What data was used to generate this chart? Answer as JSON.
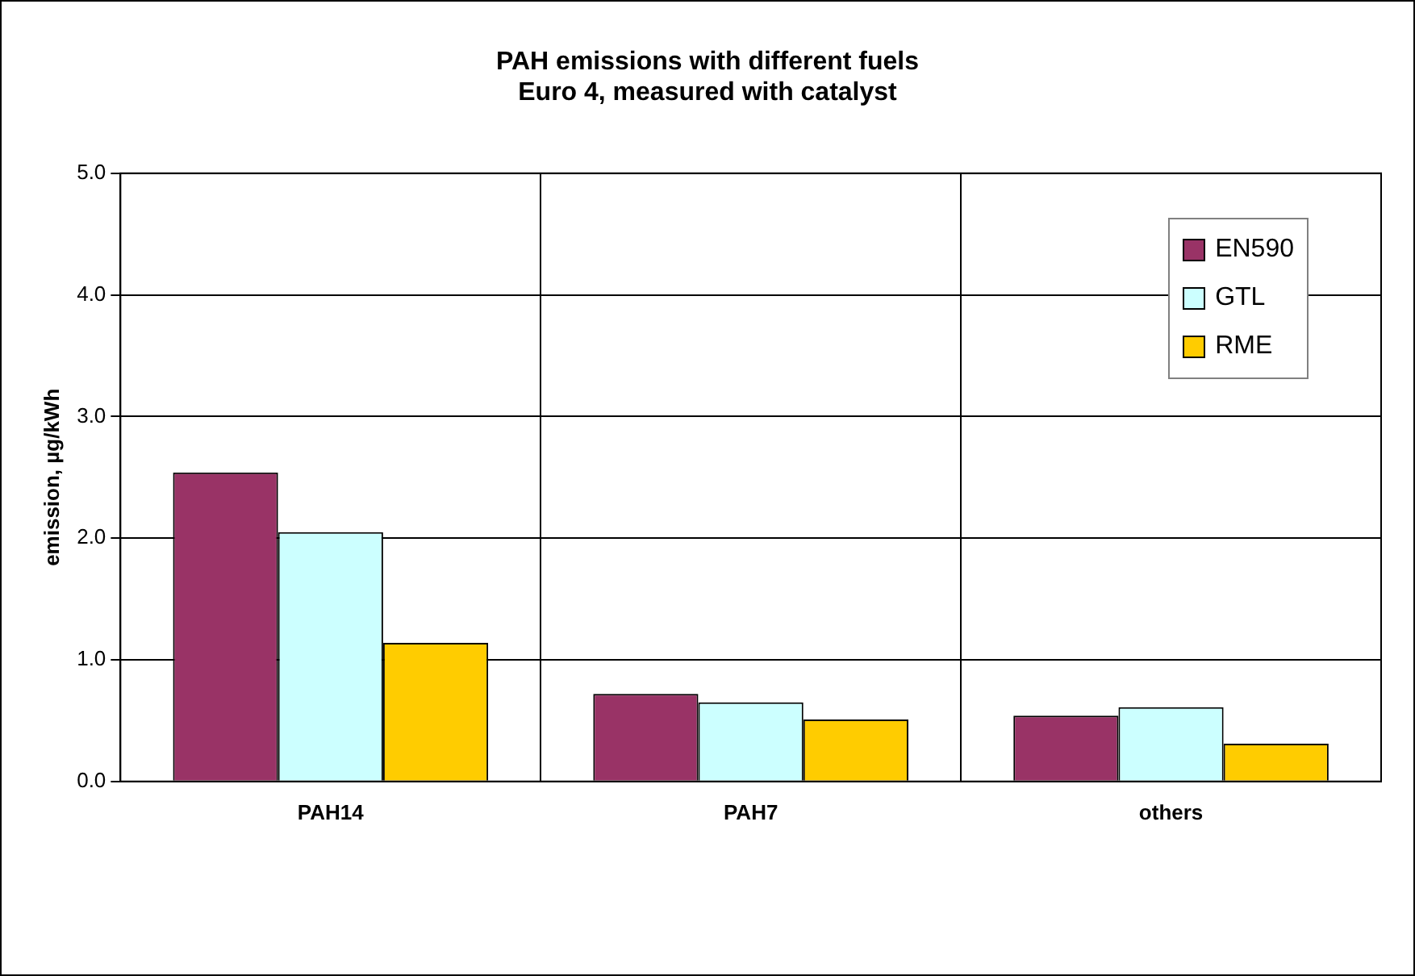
{
  "chart_data": {
    "type": "bar",
    "title": "PAH emissions with different fuels",
    "subtitle": "Euro 4, measured with catalyst",
    "ylabel": "emission, µg/kWh",
    "categories": [
      "PAH14",
      "PAH7",
      "others"
    ],
    "series": [
      {
        "name": "EN590",
        "color": "#993366",
        "values": [
          2.54,
          0.72,
          0.54
        ]
      },
      {
        "name": "GTL",
        "color": "#ccffff",
        "values": [
          2.05,
          0.65,
          0.61
        ]
      },
      {
        "name": "RME",
        "color": "#ffcc00",
        "values": [
          1.14,
          0.51,
          0.31
        ]
      }
    ],
    "ylim": [
      0,
      5
    ],
    "yticks": [
      {
        "value": 0,
        "label": "0.0"
      },
      {
        "value": 1,
        "label": "1.0"
      },
      {
        "value": 2,
        "label": "2.0"
      },
      {
        "value": 3,
        "label": "3.0"
      },
      {
        "value": 4,
        "label": "4.0"
      },
      {
        "value": 5,
        "label": "5.0"
      }
    ],
    "grid": true,
    "legend": "top right"
  }
}
